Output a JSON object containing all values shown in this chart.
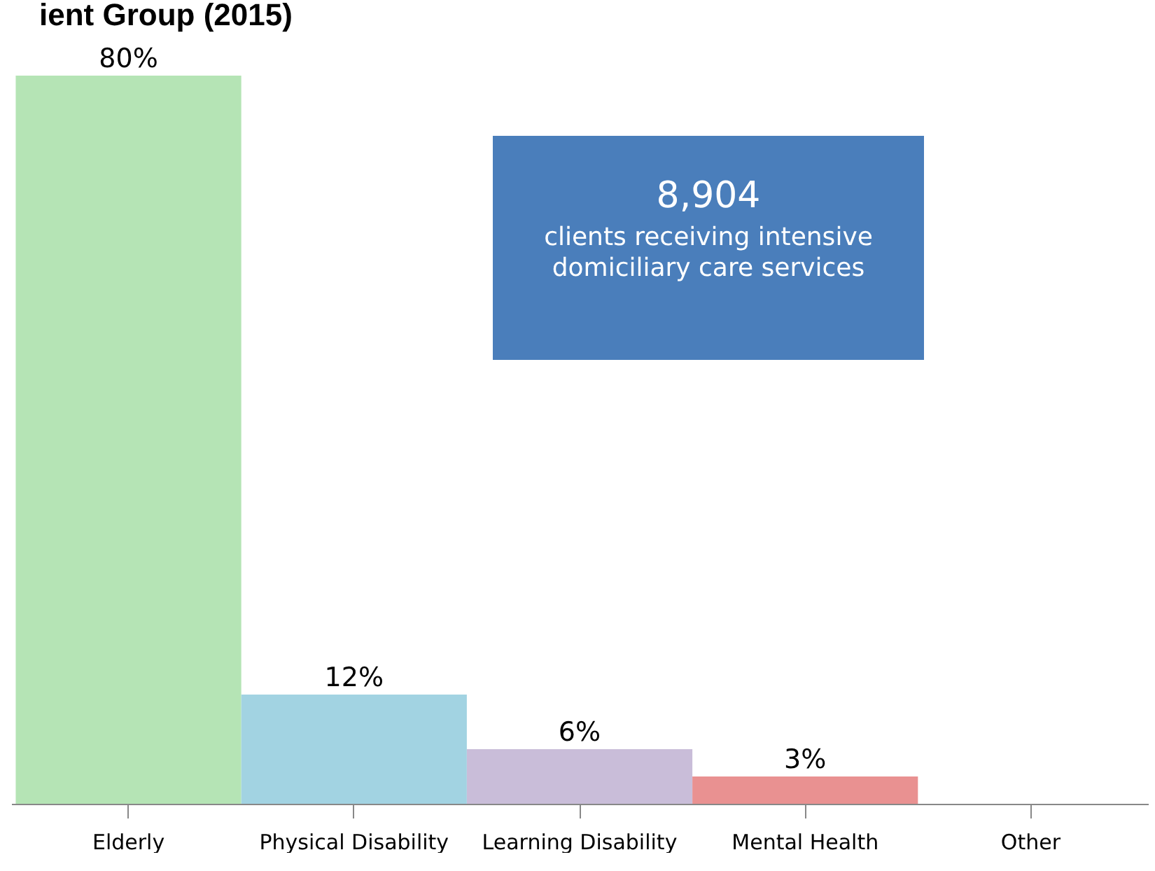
{
  "chart_data": {
    "type": "bar",
    "title": "ient Group (2015)",
    "categories": [
      "Elderly",
      "Physical Disability",
      "Learning Disability",
      "Mental Health",
      "Other"
    ],
    "values": [
      80,
      12,
      6,
      3,
      0
    ],
    "colors": [
      "#b5e4b5",
      "#a2d3e2",
      "#c9bdd9",
      "#e99191",
      "#cccccc"
    ],
    "value_labels": [
      "80%",
      "12%",
      "6%",
      "3%",
      null
    ],
    "annotations": [
      "8,904",
      "clients receiving intensive domiciliary care services"
    ],
    "grid": false
  }
}
